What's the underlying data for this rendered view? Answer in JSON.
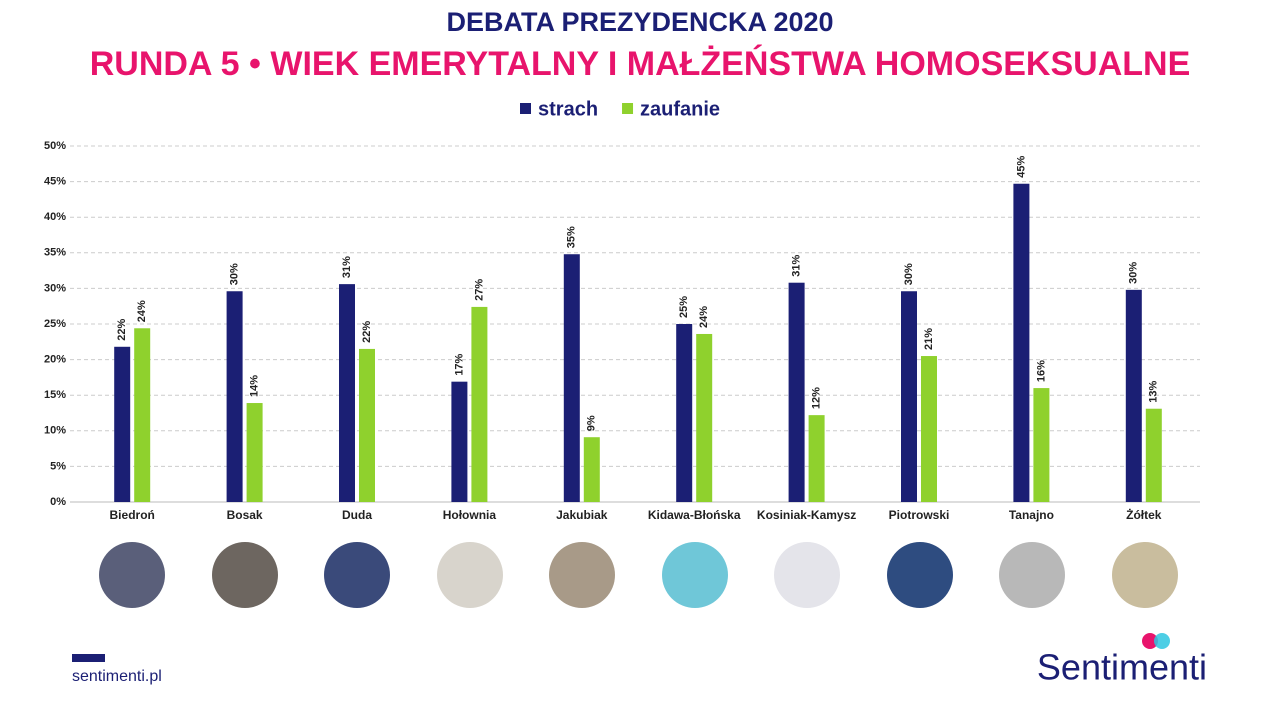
{
  "chart_data": {
    "type": "bar",
    "title": "DEBATA PREZYDENCKA 2020",
    "subtitle": "RUNDA 5 • WIEK EMERYTALNY I MAŁŻEŃSTWA HOMOSEKSUALNE",
    "categories": [
      "Biedroń",
      "Bosak",
      "Duda",
      "Hołownia",
      "Jakubiak",
      "Kidawa-Błońska",
      "Kosiniak-Kamysz",
      "Piotrowski",
      "Tanajno",
      "Żółtek"
    ],
    "series": [
      {
        "name": "strach",
        "color": "#1b1f74",
        "values": [
          21.8,
          29.6,
          30.6,
          16.9,
          34.8,
          25.0,
          30.8,
          29.6,
          44.7,
          29.8
        ],
        "value_labels": [
          "22%",
          "30%",
          "31%",
          "17%",
          "35%",
          "25%",
          "31%",
          "30%",
          "45%",
          "30%"
        ]
      },
      {
        "name": "zaufanie",
        "color": "#8fd12d",
        "values": [
          24.4,
          13.9,
          21.5,
          27.4,
          9.1,
          23.6,
          12.2,
          20.5,
          16.0,
          13.1
        ],
        "value_labels": [
          "24%",
          "14%",
          "22%",
          "27%",
          "9%",
          "24%",
          "12%",
          "21%",
          "16%",
          "13%"
        ]
      }
    ],
    "ylim": [
      0,
      50
    ],
    "yticks": [
      {
        "value": 0,
        "label": "0%"
      },
      {
        "value": 5,
        "label": "5%"
      },
      {
        "value": 10,
        "label": "10%"
      },
      {
        "value": 15,
        "label": "15%"
      },
      {
        "value": 20,
        "label": "20%"
      },
      {
        "value": 25,
        "label": "25%"
      },
      {
        "value": 30,
        "label": "30%"
      },
      {
        "value": 35,
        "label": "35%"
      },
      {
        "value": 40,
        "label": "40%"
      },
      {
        "value": 45,
        "label": "45%"
      },
      {
        "value": 50,
        "label": "50%"
      }
    ],
    "grid": true
  },
  "footer": {
    "website": "sentimenti.pl",
    "brand": "Sentimenti"
  }
}
